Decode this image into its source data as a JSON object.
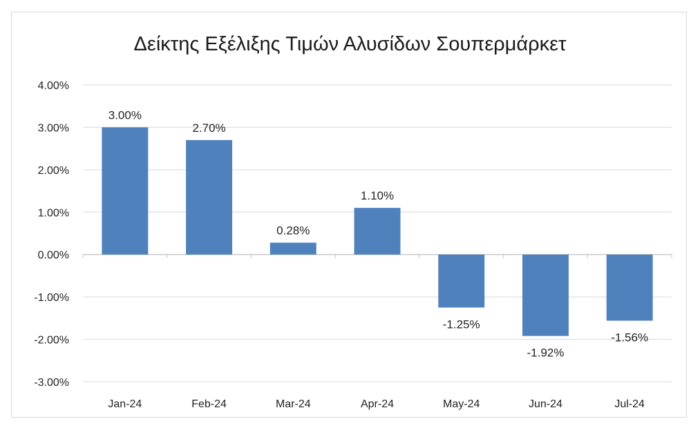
{
  "chart_data": {
    "type": "bar",
    "title": "Δείκτης Εξέλιξης Τιμών Αλυσίδων Σουπερμάρκετ",
    "xlabel": "",
    "ylabel": "",
    "categories": [
      "Jan-24",
      "Feb-24",
      "Mar-24",
      "Apr-24",
      "May-24",
      "Jun-24",
      "Jul-24"
    ],
    "values": [
      3.0,
      2.7,
      0.28,
      1.1,
      -1.25,
      -1.92,
      -1.56
    ],
    "data_labels": [
      "3.00%",
      "2.70%",
      "0.28%",
      "1.10%",
      "-1.25%",
      "-1.92%",
      "-1.56%"
    ],
    "ylim": [
      -3,
      4
    ],
    "yticks": [
      4,
      3,
      2,
      1,
      0,
      -1,
      -2,
      -3
    ],
    "ytick_labels": [
      "4.00%",
      "3.00%",
      "2.00%",
      "1.00%",
      "0.00%",
      "-1.00%",
      "-2.00%",
      "-3.00%"
    ],
    "grid": true,
    "legend": "none",
    "colors": {
      "bar": "#4f81bd",
      "grid": "#d9d9d9",
      "axis": "#bfbfbf"
    }
  }
}
